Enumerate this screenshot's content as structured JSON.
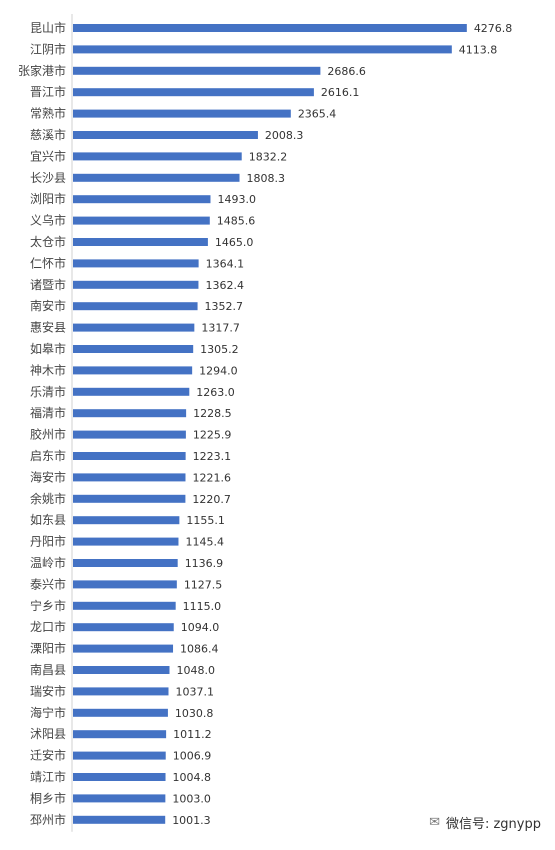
{
  "chart_data": {
    "type": "bar",
    "orientation": "horizontal",
    "categories": [
      "昆山市",
      "江阴市",
      "张家港市",
      "晋江市",
      "常熟市",
      "慈溪市",
      "宜兴市",
      "长沙县",
      "浏阳市",
      "义乌市",
      "太仓市",
      "仁怀市",
      "诸暨市",
      "南安市",
      "惠安县",
      "如皋市",
      "神木市",
      "乐清市",
      "福清市",
      "胶州市",
      "启东市",
      "海安市",
      "余姚市",
      "如东县",
      "丹阳市",
      "温岭市",
      "泰兴市",
      "宁乡市",
      "龙口市",
      "溧阳市",
      "南昌县",
      "瑞安市",
      "海宁市",
      "沭阳县",
      "迁安市",
      "靖江市",
      "桐乡市",
      "邳州市"
    ],
    "values": [
      4276.8,
      4113.8,
      2686.6,
      2616.1,
      2365.4,
      2008.3,
      1832.2,
      1808.3,
      1493.0,
      1485.6,
      1465.0,
      1364.1,
      1362.4,
      1352.7,
      1317.7,
      1305.2,
      1294.0,
      1263.0,
      1228.5,
      1225.9,
      1223.1,
      1221.6,
      1220.7,
      1155.1,
      1145.4,
      1136.9,
      1127.5,
      1115.0,
      1094.0,
      1086.4,
      1048.0,
      1037.1,
      1030.8,
      1011.2,
      1006.9,
      1004.8,
      1003.0,
      1001.3
    ],
    "value_labels": [
      "4276.8",
      "4113.8",
      "2686.6",
      "2616.1",
      "2365.4",
      "2008.3",
      "1832.2",
      "1808.3",
      "1493.0",
      "1485.6",
      "1465.0",
      "1364.1",
      "1362.4",
      "1352.7",
      "1317.7",
      "1305.2",
      "1294.0",
      "1263.0",
      "1228.5",
      "1225.9",
      "1223.1",
      "1221.6",
      "1220.7",
      "1155.1",
      "1145.4",
      "1136.9",
      "1127.5",
      "1115.0",
      "1094.0",
      "1086.4",
      "1048.0",
      "1037.1",
      "1030.8",
      "1011.2",
      "1006.9",
      "1004.8",
      "1003.0",
      "1001.3"
    ],
    "xlim": [
      0,
      4800
    ],
    "grid": false,
    "legend": "none",
    "bar_color": "#4472C4"
  },
  "watermark": {
    "icon": "wechat-icon",
    "text": "微信号: zgnypp"
  }
}
